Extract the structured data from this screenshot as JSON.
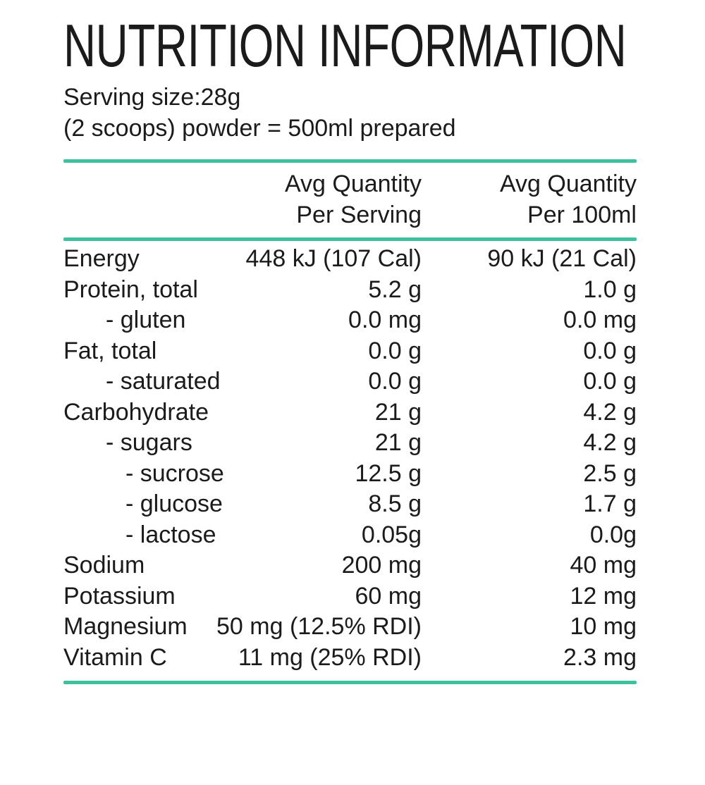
{
  "page": {
    "title": "NUTRITION INFORMATION",
    "serving_line1": "Serving size:28g",
    "serving_line2": "(2 scoops) powder = 500ml prepared"
  },
  "table": {
    "accent_color": "#3ec19e",
    "text_color": "#1b1b1b",
    "header": {
      "col_serving_line1": "Avg Quantity",
      "col_serving_line2": "Per Serving",
      "col_100ml_line1": "Avg Quantity",
      "col_100ml_line2": "Per 100ml"
    },
    "rows": [
      {
        "label": "Energy",
        "indent": 0,
        "per_serving": "448 kJ (107 Cal)",
        "per_100ml": "90 kJ (21 Cal)"
      },
      {
        "label": "Protein, total",
        "indent": 0,
        "per_serving": "5.2 g",
        "per_100ml": "1.0 g"
      },
      {
        "label": "- gluten",
        "indent": 1,
        "per_serving": "0.0 mg",
        "per_100ml": "0.0 mg"
      },
      {
        "label": "Fat, total",
        "indent": 0,
        "per_serving": "0.0 g",
        "per_100ml": "0.0 g"
      },
      {
        "label": "- saturated",
        "indent": 1,
        "per_serving": "0.0 g",
        "per_100ml": "0.0 g"
      },
      {
        "label": "Carbohydrate",
        "indent": 0,
        "per_serving": "21 g",
        "per_100ml": "4.2 g"
      },
      {
        "label": "- sugars",
        "indent": 1,
        "per_serving": "21 g",
        "per_100ml": "4.2 g"
      },
      {
        "label": "- sucrose",
        "indent": 2,
        "per_serving": "12.5 g",
        "per_100ml": "2.5 g"
      },
      {
        "label": "- glucose",
        "indent": 2,
        "per_serving": "8.5 g",
        "per_100ml": "1.7 g"
      },
      {
        "label": "- lactose",
        "indent": 2,
        "per_serving": "0.05g",
        "per_100ml": "0.0g"
      },
      {
        "label": "Sodium",
        "indent": 0,
        "per_serving": "200 mg",
        "per_100ml": "40 mg"
      },
      {
        "label": "Potassium",
        "indent": 0,
        "per_serving": "60 mg",
        "per_100ml": "12 mg"
      },
      {
        "label": "Magnesium",
        "indent": 0,
        "per_serving": "50 mg (12.5% RDI)",
        "per_100ml": "10 mg"
      },
      {
        "label": "Vitamin C",
        "indent": 0,
        "per_serving": "11 mg (25% RDI)",
        "per_100ml": "2.3 mg"
      }
    ]
  }
}
